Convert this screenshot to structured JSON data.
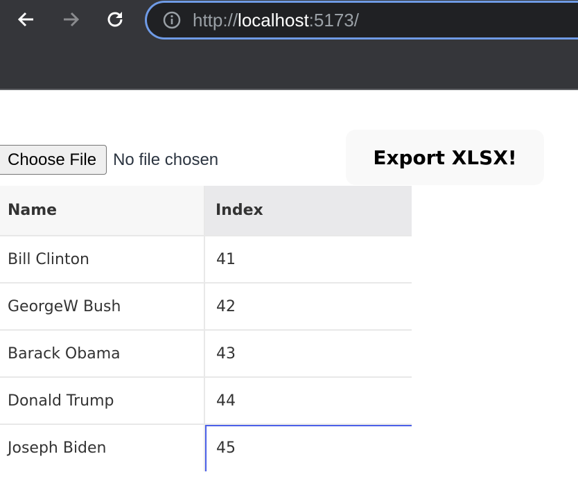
{
  "browser": {
    "url_prefix": "http://",
    "url_host": "localhost",
    "url_suffix": ":5173/",
    "accent": "#6f9be6"
  },
  "file_input": {
    "button_label": "Choose File",
    "status": "No file chosen"
  },
  "export_button": "Export XLSX!",
  "table": {
    "headers": [
      "Name",
      "Index"
    ],
    "rows": [
      [
        "Bill Clinton",
        "41"
      ],
      [
        "GeorgeW Bush",
        "42"
      ],
      [
        "Barack Obama",
        "43"
      ],
      [
        "Donald Trump",
        "44"
      ],
      [
        "Joseph Biden",
        "45"
      ]
    ],
    "selected_cell": {
      "row": 5,
      "column": "Index"
    }
  }
}
